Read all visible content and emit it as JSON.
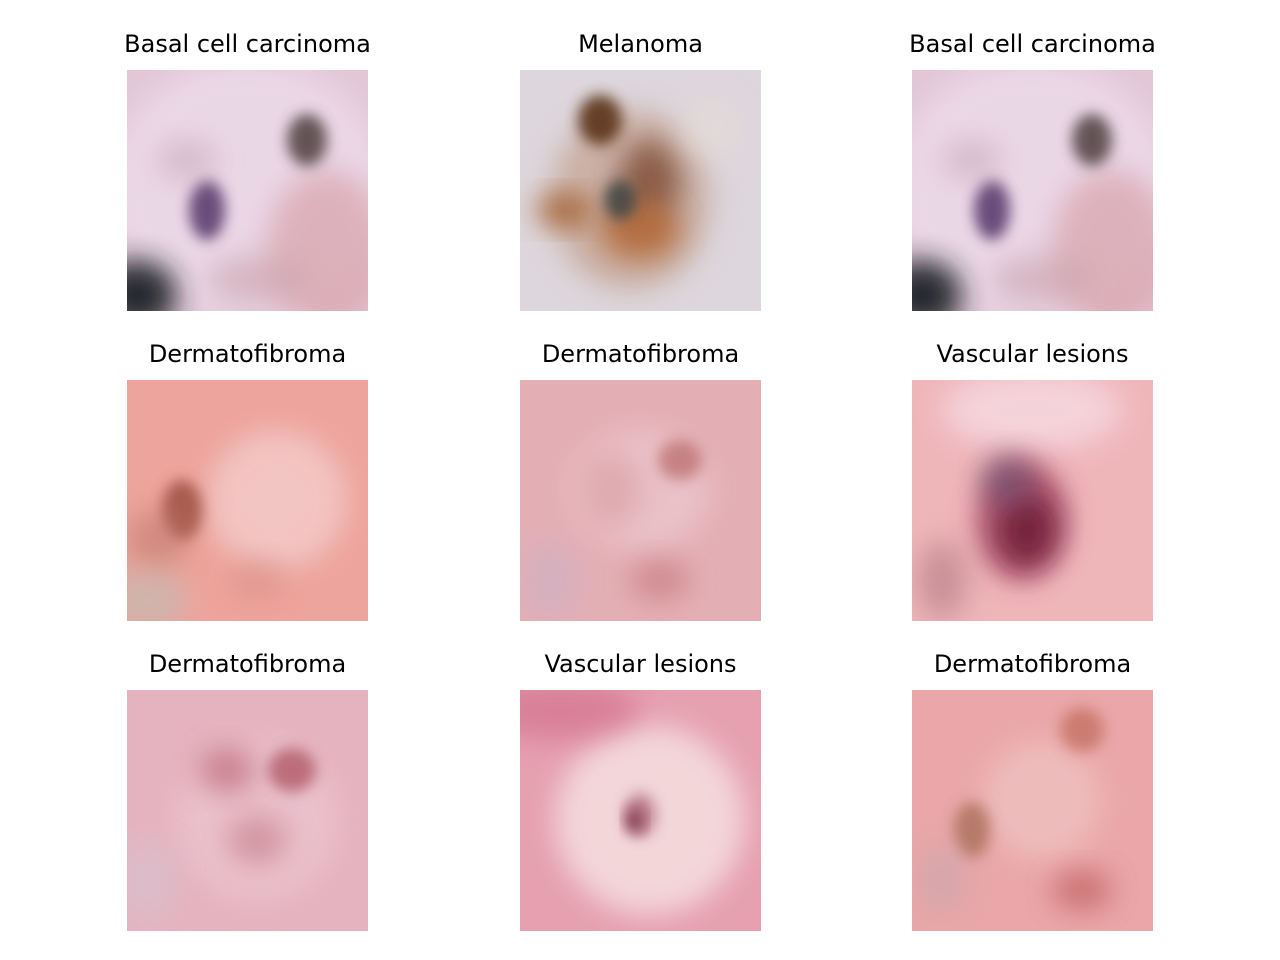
{
  "panels": [
    {
      "title": "Basal cell carcinoma"
    },
    {
      "title": "Melanoma"
    },
    {
      "title": "Basal cell carcinoma"
    },
    {
      "title": "Dermatofibroma"
    },
    {
      "title": "Dermatofibroma"
    },
    {
      "title": "Vascular lesions"
    },
    {
      "title": "Dermatofibroma"
    },
    {
      "title": "Vascular lesions"
    },
    {
      "title": "Dermatofibroma"
    }
  ]
}
